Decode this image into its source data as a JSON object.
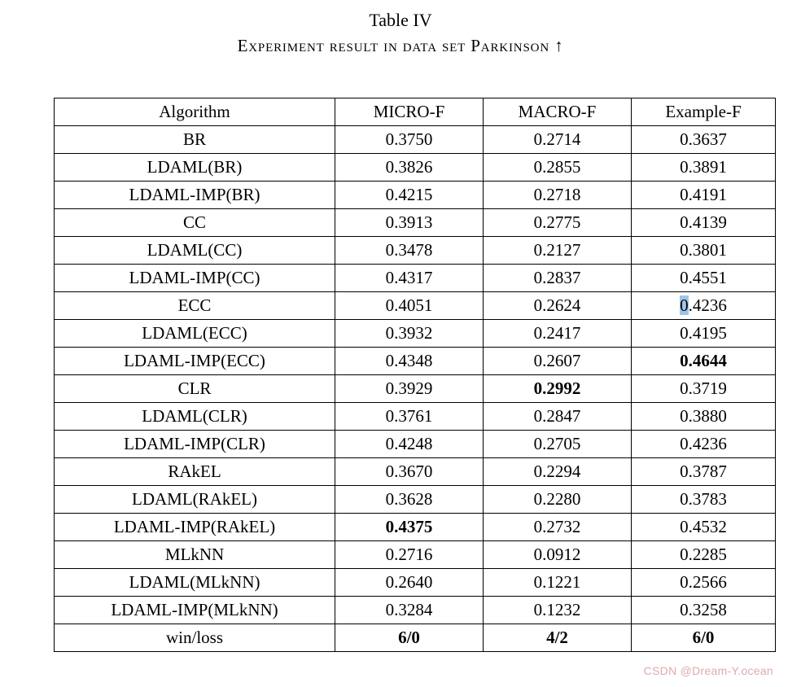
{
  "page": {
    "title": "Table IV",
    "subtitle": "Experiment result in data set Parkinson ↑",
    "watermark": "CSDN @Dream-Y.ocean"
  },
  "table": {
    "headers": [
      "Algorithm",
      "MICRO-F",
      "MACRO-F",
      "Example-F"
    ],
    "highlight": {
      "row": 6,
      "col": 3,
      "chars": 1,
      "color": "#9fc5e8"
    },
    "rows": [
      {
        "cells": [
          "BR",
          "0.3750",
          "0.2714",
          "0.3637"
        ],
        "bold": [
          false,
          false,
          false,
          false
        ]
      },
      {
        "cells": [
          "LDAML(BR)",
          "0.3826",
          "0.2855",
          "0.3891"
        ],
        "bold": [
          false,
          false,
          false,
          false
        ]
      },
      {
        "cells": [
          "LDAML-IMP(BR)",
          "0.4215",
          "0.2718",
          "0.4191"
        ],
        "bold": [
          false,
          false,
          false,
          false
        ]
      },
      {
        "cells": [
          "CC",
          "0.3913",
          "0.2775",
          "0.4139"
        ],
        "bold": [
          false,
          false,
          false,
          false
        ]
      },
      {
        "cells": [
          "LDAML(CC)",
          "0.3478",
          "0.2127",
          "0.3801"
        ],
        "bold": [
          false,
          false,
          false,
          false
        ]
      },
      {
        "cells": [
          "LDAML-IMP(CC)",
          "0.4317",
          "0.2837",
          "0.4551"
        ],
        "bold": [
          false,
          false,
          false,
          false
        ]
      },
      {
        "cells": [
          "ECC",
          "0.4051",
          "0.2624",
          "0.4236"
        ],
        "bold": [
          false,
          false,
          false,
          false
        ]
      },
      {
        "cells": [
          "LDAML(ECC)",
          "0.3932",
          "0.2417",
          "0.4195"
        ],
        "bold": [
          false,
          false,
          false,
          false
        ]
      },
      {
        "cells": [
          "LDAML-IMP(ECC)",
          "0.4348",
          "0.2607",
          "0.4644"
        ],
        "bold": [
          false,
          false,
          false,
          true
        ]
      },
      {
        "cells": [
          "CLR",
          "0.3929",
          "0.2992",
          "0.3719"
        ],
        "bold": [
          false,
          false,
          true,
          false
        ]
      },
      {
        "cells": [
          "LDAML(CLR)",
          "0.3761",
          "0.2847",
          "0.3880"
        ],
        "bold": [
          false,
          false,
          false,
          false
        ]
      },
      {
        "cells": [
          "LDAML-IMP(CLR)",
          "0.4248",
          "0.2705",
          "0.4236"
        ],
        "bold": [
          false,
          false,
          false,
          false
        ]
      },
      {
        "cells": [
          "RAkEL",
          "0.3670",
          "0.2294",
          "0.3787"
        ],
        "bold": [
          false,
          false,
          false,
          false
        ]
      },
      {
        "cells": [
          "LDAML(RAkEL)",
          "0.3628",
          "0.2280",
          "0.3783"
        ],
        "bold": [
          false,
          false,
          false,
          false
        ]
      },
      {
        "cells": [
          "LDAML-IMP(RAkEL)",
          "0.4375",
          "0.2732",
          "0.4532"
        ],
        "bold": [
          false,
          true,
          false,
          false
        ]
      },
      {
        "cells": [
          "MLkNN",
          "0.2716",
          "0.0912",
          "0.2285"
        ],
        "bold": [
          false,
          false,
          false,
          false
        ]
      },
      {
        "cells": [
          "LDAML(MLkNN)",
          "0.2640",
          "0.1221",
          "0.2566"
        ],
        "bold": [
          false,
          false,
          false,
          false
        ]
      },
      {
        "cells": [
          "LDAML-IMP(MLkNN)",
          "0.3284",
          "0.1232",
          "0.3258"
        ],
        "bold": [
          false,
          false,
          false,
          false
        ]
      },
      {
        "cells": [
          "win/loss",
          "6/0",
          "4/2",
          "6/0"
        ],
        "bold": [
          false,
          true,
          true,
          true
        ],
        "summary": true
      }
    ]
  }
}
